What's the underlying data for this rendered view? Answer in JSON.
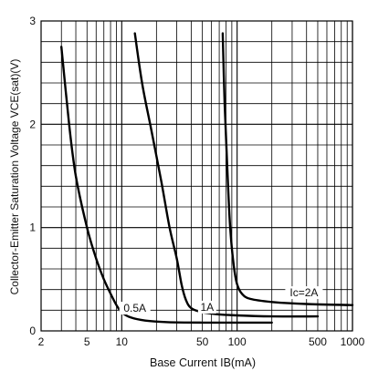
{
  "chart_data": {
    "type": "line",
    "x_scale": "log",
    "xlim": [
      2,
      1000
    ],
    "ylim": [
      0,
      3
    ],
    "grid": true,
    "x_ticks": [
      2,
      3,
      4,
      5,
      6,
      7,
      8,
      9,
      10,
      20,
      30,
      40,
      50,
      60,
      70,
      80,
      90,
      100,
      200,
      300,
      400,
      500,
      600,
      700,
      800,
      900,
      1000
    ],
    "x_tick_labels": [
      {
        "value": 2,
        "label": "2"
      },
      {
        "value": 5,
        "label": "5"
      },
      {
        "value": 10,
        "label": "10"
      },
      {
        "value": 50,
        "label": "50"
      },
      {
        "value": 100,
        "label": "100"
      },
      {
        "value": 500,
        "label": "500"
      },
      {
        "value": 1000,
        "label": "1000"
      }
    ],
    "y_minor_step": 0.2,
    "y_tick_labels": [
      {
        "value": 0,
        "label": "0"
      },
      {
        "value": 1,
        "label": "1"
      },
      {
        "value": 2,
        "label": "2"
      },
      {
        "value": 3,
        "label": "3"
      }
    ],
    "xlabel": "Base Current IB(mA)",
    "ylabel": "Collector-Emitter Saturation Voltage VCE(sat)(V)",
    "series": [
      {
        "name": "0.5A",
        "label_at": [
          13,
          0.22
        ],
        "points": [
          [
            3,
            2.75
          ],
          [
            3.5,
            2.0
          ],
          [
            4,
            1.5
          ],
          [
            5,
            1.0
          ],
          [
            6,
            0.7
          ],
          [
            7,
            0.5
          ],
          [
            8,
            0.36
          ],
          [
            9,
            0.25
          ],
          [
            10,
            0.18
          ],
          [
            12,
            0.13
          ],
          [
            16,
            0.1
          ],
          [
            25,
            0.085
          ],
          [
            50,
            0.08
          ],
          [
            100,
            0.08
          ],
          [
            200,
            0.08
          ]
        ]
      },
      {
        "name": "1A",
        "label_at": [
          55,
          0.23
        ],
        "points": [
          [
            13,
            2.88
          ],
          [
            15,
            2.4
          ],
          [
            18,
            1.95
          ],
          [
            22,
            1.45
          ],
          [
            26,
            1.0
          ],
          [
            30,
            0.7
          ],
          [
            33,
            0.45
          ],
          [
            36,
            0.3
          ],
          [
            40,
            0.22
          ],
          [
            50,
            0.18
          ],
          [
            70,
            0.16
          ],
          [
            100,
            0.15
          ],
          [
            200,
            0.14
          ],
          [
            500,
            0.14
          ]
        ]
      },
      {
        "name": "Ic=2A",
        "label_at": [
          380,
          0.37
        ],
        "points": [
          [
            75,
            2.88
          ],
          [
            78,
            2.2
          ],
          [
            82,
            1.6
          ],
          [
            86,
            1.1
          ],
          [
            90,
            0.8
          ],
          [
            95,
            0.58
          ],
          [
            100,
            0.45
          ],
          [
            110,
            0.36
          ],
          [
            130,
            0.31
          ],
          [
            200,
            0.28
          ],
          [
            400,
            0.26
          ],
          [
            1000,
            0.25
          ]
        ]
      }
    ]
  }
}
